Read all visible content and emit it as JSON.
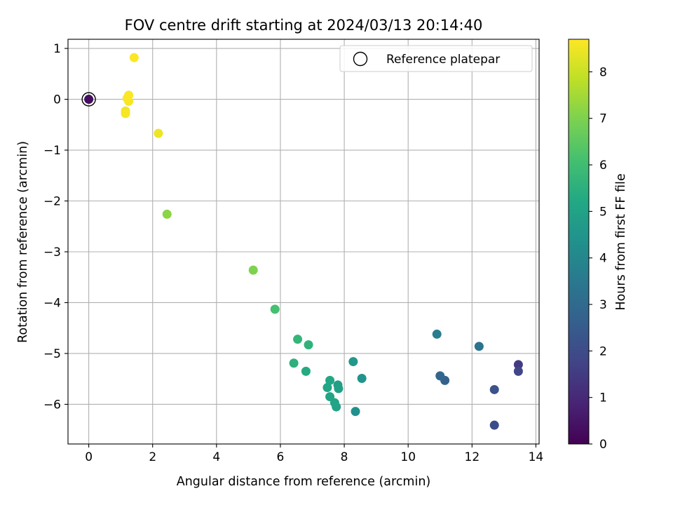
{
  "chart_data": {
    "type": "scatter",
    "title": "FOV centre drift starting at 2024/03/13 20:14:40",
    "xlabel": "Angular distance from reference (arcmin)",
    "ylabel": "Rotation from reference (arcmin)",
    "xlim": [
      -0.65,
      14.1
    ],
    "ylim": [
      -6.78,
      1.18
    ],
    "xticks": [
      0,
      2,
      4,
      6,
      8,
      10,
      12,
      14
    ],
    "yticks": [
      1,
      0,
      -1,
      -2,
      -3,
      -4,
      -5,
      -6
    ],
    "grid": true,
    "legend": {
      "placement": "top-right",
      "entries": [
        "Reference platepar"
      ]
    },
    "colorbar": {
      "label": "Hours from first FF file",
      "min": 0,
      "max": 8.7,
      "ticks": [
        0,
        1,
        2,
        3,
        4,
        5,
        6,
        7,
        8
      ],
      "colormap": "viridis"
    },
    "reference_point": {
      "x": 0,
      "y": 0
    },
    "points": [
      {
        "x": 0.0,
        "y": 0.0,
        "c": 0.3
      },
      {
        "x": 13.45,
        "y": -5.22,
        "c": 1.5
      },
      {
        "x": 13.45,
        "y": -5.35,
        "c": 1.8
      },
      {
        "x": 12.7,
        "y": -6.41,
        "c": 2.0
      },
      {
        "x": 12.7,
        "y": -5.71,
        "c": 2.2
      },
      {
        "x": 11.15,
        "y": -5.53,
        "c": 2.7
      },
      {
        "x": 11.0,
        "y": -5.44,
        "c": 2.9
      },
      {
        "x": 12.22,
        "y": -4.86,
        "c": 3.3
      },
      {
        "x": 10.9,
        "y": -4.62,
        "c": 3.7
      },
      {
        "x": 8.35,
        "y": -6.14,
        "c": 4.3
      },
      {
        "x": 8.55,
        "y": -5.49,
        "c": 4.5
      },
      {
        "x": 8.28,
        "y": -5.16,
        "c": 4.6
      },
      {
        "x": 7.8,
        "y": -5.62,
        "c": 4.8
      },
      {
        "x": 7.82,
        "y": -5.69,
        "c": 4.9
      },
      {
        "x": 7.75,
        "y": -6.05,
        "c": 5.0
      },
      {
        "x": 7.7,
        "y": -5.97,
        "c": 5.05
      },
      {
        "x": 7.55,
        "y": -5.85,
        "c": 5.1
      },
      {
        "x": 7.47,
        "y": -5.67,
        "c": 5.15
      },
      {
        "x": 7.55,
        "y": -5.53,
        "c": 5.2
      },
      {
        "x": 6.8,
        "y": -5.35,
        "c": 5.3
      },
      {
        "x": 6.42,
        "y": -5.19,
        "c": 5.5
      },
      {
        "x": 6.88,
        "y": -4.83,
        "c": 5.6
      },
      {
        "x": 6.54,
        "y": -4.72,
        "c": 5.7
      },
      {
        "x": 5.83,
        "y": -4.13,
        "c": 6.1
      },
      {
        "x": 5.15,
        "y": -3.36,
        "c": 7.0
      },
      {
        "x": 2.45,
        "y": -2.26,
        "c": 7.2
      },
      {
        "x": 2.18,
        "y": -0.67,
        "c": 8.5
      },
      {
        "x": 1.15,
        "y": -0.23,
        "c": 8.55
      },
      {
        "x": 1.15,
        "y": -0.28,
        "c": 8.6
      },
      {
        "x": 1.25,
        "y": -0.04,
        "c": 8.62
      },
      {
        "x": 1.2,
        "y": 0.02,
        "c": 8.64
      },
      {
        "x": 1.25,
        "y": 0.08,
        "c": 8.66
      },
      {
        "x": 1.42,
        "y": 0.82,
        "c": 8.7
      }
    ]
  }
}
